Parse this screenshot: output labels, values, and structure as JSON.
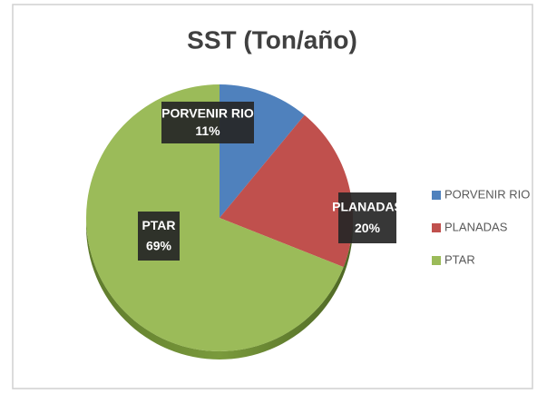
{
  "chart_data": {
    "type": "pie",
    "title": "SST (Ton/año)",
    "categories": [
      "PORVENIR RIO",
      "PLANADAS",
      "PTAR"
    ],
    "values": [
      11,
      20,
      69
    ],
    "value_labels": [
      "11%",
      "20%",
      "69%"
    ],
    "colors": [
      "#4f81bd",
      "#c0504d",
      "#9bbb59"
    ],
    "legend": "right"
  }
}
